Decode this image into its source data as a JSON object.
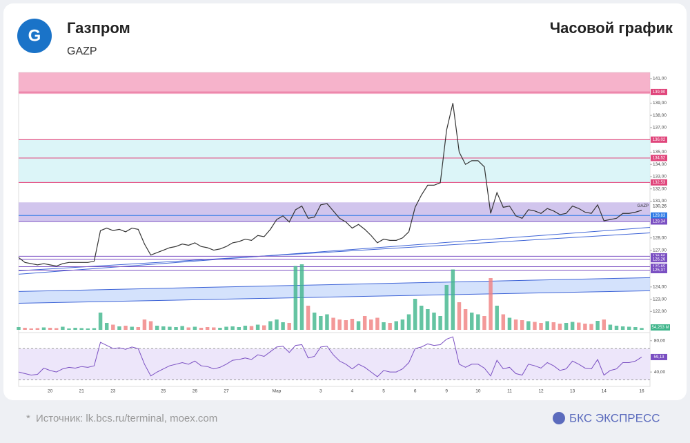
{
  "header": {
    "title": "Газпром",
    "ticker": "GAZP",
    "chart_kind": "Часовой график"
  },
  "footer": {
    "source": "Источник: lk.bcs.ru/terminal, moex.com",
    "brand": "БКС ЭКСПРЕСС"
  },
  "chart_data": {
    "type": "line",
    "ticker_label": "GAZP",
    "categories": [
      null,
      null,
      null,
      null,
      null,
      "20",
      null,
      null,
      null,
      null,
      "21",
      null,
      null,
      null,
      null,
      "23",
      null,
      null,
      null,
      null,
      null,
      null,
      null,
      "25",
      null,
      null,
      null,
      null,
      "26",
      null,
      null,
      null,
      null,
      "27",
      null,
      null,
      null,
      null,
      null,
      null,
      null,
      "Мар",
      null,
      null,
      null,
      null,
      null,
      null,
      "3",
      null,
      null,
      null,
      null,
      "4",
      null,
      null,
      null,
      null,
      "5",
      null,
      null,
      null,
      null,
      "6",
      null,
      null,
      null,
      null,
      "9",
      null,
      null,
      null,
      null,
      "10",
      null,
      null,
      null,
      null,
      "11",
      null,
      null,
      null,
      null,
      "12",
      null,
      null,
      null,
      null,
      "13",
      null,
      null,
      null,
      null,
      "14",
      null,
      null,
      null,
      null,
      null,
      "16"
    ],
    "series": [
      {
        "name": "GAZP",
        "color": "#333333",
        "values": [
          126.4,
          126.0,
          125.9,
          125.8,
          125.9,
          125.8,
          125.7,
          125.9,
          126.0,
          126.0,
          126.0,
          126.0,
          126.1,
          128.6,
          128.8,
          128.6,
          128.7,
          128.5,
          128.8,
          128.7,
          127.5,
          126.6,
          126.8,
          127.0,
          127.2,
          127.3,
          127.5,
          127.4,
          127.6,
          127.3,
          127.2,
          127.0,
          127.1,
          127.3,
          127.6,
          127.7,
          127.9,
          127.8,
          128.2,
          128.1,
          128.7,
          129.5,
          129.8,
          129.3,
          130.3,
          130.6,
          129.6,
          129.7,
          130.7,
          130.8,
          130.2,
          129.6,
          129.3,
          128.8,
          129.1,
          128.7,
          128.2,
          127.6,
          127.9,
          127.8,
          127.8,
          128.0,
          128.5,
          130.5,
          131.5,
          132.3,
          132.3,
          132.5,
          136.8,
          139.0,
          135.0,
          134.0,
          134.3,
          134.3,
          133.8,
          130.0,
          131.7,
          130.5,
          130.6,
          129.8,
          129.6,
          130.3,
          130.2,
          130.0,
          130.4,
          130.2,
          129.9,
          130.0,
          130.6,
          130.4,
          130.1,
          130.0,
          130.7,
          129.4,
          129.5,
          129.6,
          130.0,
          130.0,
          130.1,
          130.26
        ],
        "value_labels": [
          null,
          null,
          null,
          null,
          null,
          null,
          null,
          null,
          null,
          null,
          null,
          null,
          null,
          null,
          null,
          null,
          null,
          null,
          null,
          null,
          null,
          null,
          null,
          null,
          null,
          null,
          null,
          null,
          null,
          null,
          null,
          null,
          null,
          null,
          null,
          null,
          null,
          null,
          null,
          null,
          null,
          null,
          null,
          null,
          null,
          null,
          null,
          null,
          null,
          null,
          null,
          null,
          null,
          null,
          null,
          null,
          null,
          null,
          null,
          null,
          null,
          null,
          null,
          null,
          null,
          null,
          null,
          null,
          null,
          null,
          null,
          null,
          null,
          null,
          null,
          null,
          null,
          null,
          null,
          null,
          null,
          null,
          null,
          null,
          null,
          null,
          null,
          null,
          null,
          null,
          null,
          null,
          null,
          null,
          null,
          null,
          null,
          null,
          null,
          "130,26"
        ]
      }
    ],
    "ylim": [
      120.5,
      141.5
    ],
    "yticks": [
      {
        "value": 122,
        "label": "122,00"
      },
      {
        "value": 123,
        "label": "123,00"
      },
      {
        "value": 124,
        "label": "124,00"
      },
      {
        "value": 127,
        "label": "127,00"
      },
      {
        "value": 128,
        "label": "128,00"
      },
      {
        "value": 131,
        "label": "131,00"
      },
      {
        "value": 132,
        "label": "132,00"
      },
      {
        "value": 133,
        "label": "133,00"
      },
      {
        "value": 134,
        "label": "134,00"
      },
      {
        "value": 135,
        "label": "135,00"
      },
      {
        "value": 137,
        "label": "137,00"
      },
      {
        "value": 138,
        "label": "138,00"
      },
      {
        "value": 139,
        "label": "139,00"
      },
      {
        "value": 141,
        "label": "141,00"
      }
    ],
    "levels": [
      {
        "value": 139.9,
        "label": "139,90",
        "color": "#e0457b"
      },
      {
        "value": 136.02,
        "label": "136,02",
        "color": "#e0457b"
      },
      {
        "value": 134.52,
        "label": "134,52",
        "color": "#e0457b"
      },
      {
        "value": 132.53,
        "label": "132,53",
        "color": "#e0457b"
      },
      {
        "value": 129.83,
        "label": "129,83",
        "color": "#2e7be6"
      },
      {
        "value": 129.34,
        "label": "129,34",
        "color": "#7a4fc2"
      },
      {
        "value": 126.5,
        "label": "126,50",
        "color": "#7a4fc2"
      },
      {
        "value": 126.26,
        "label": "126,26",
        "color": "#7a4fc2"
      },
      {
        "value": 125.65,
        "label": "125,65",
        "color": "#7a4fc2"
      },
      {
        "value": 125.37,
        "label": "125,37",
        "color": "#7a4fc2"
      }
    ],
    "zones": [
      {
        "from": 139.75,
        "to": 141.5,
        "color": "#f4a6c2"
      },
      {
        "from": 129.34,
        "to": 130.9,
        "color": "#c9bbea"
      },
      {
        "from": 132.53,
        "to": 136.02,
        "color": "#d6f3f7"
      }
    ],
    "trendlines": [
      {
        "from": 125.04,
        "to": 128.86,
        "color": "#3d63d6"
      },
      {
        "from": 125.32,
        "to": 128.41,
        "color": "#3d63d6"
      }
    ],
    "channel": {
      "upper": [
        123.63,
        124.76
      ],
      "lower": [
        122.67,
        123.69
      ],
      "color": "#c9dbfb"
    },
    "volume": {
      "ylim": [
        0,
        2000
      ],
      "up_color": "#3fb58b",
      "down_color": "#f08080",
      "values": [
        80,
        60,
        40,
        50,
        70,
        60,
        50,
        90,
        40,
        60,
        50,
        40,
        50,
        500,
        200,
        150,
        100,
        120,
        90,
        80,
        300,
        250,
        120,
        100,
        90,
        80,
        110,
        70,
        90,
        60,
        80,
        70,
        60,
        90,
        100,
        80,
        120,
        110,
        150,
        130,
        250,
        300,
        220,
        200,
        1850,
        1900,
        700,
        500,
        400,
        450,
        350,
        300,
        280,
        320,
        250,
        400,
        300,
        350,
        220,
        200,
        250,
        300,
        450,
        900,
        700,
        600,
        500,
        400,
        1300,
        1750,
        800,
        600,
        500,
        450,
        400,
        1500,
        700,
        450,
        350,
        300,
        280,
        250,
        230,
        200,
        250,
        220,
        180,
        200,
        230,
        210,
        180,
        170,
        260,
        300,
        150,
        120,
        100,
        90,
        80,
        54.253
      ],
      "value_labels": [
        null,
        null,
        null,
        null,
        null,
        null,
        null,
        null,
        null,
        null,
        null,
        null,
        null,
        null,
        null,
        null,
        null,
        null,
        null,
        null,
        null,
        null,
        null,
        null,
        null,
        null,
        null,
        null,
        null,
        null,
        null,
        null,
        null,
        null,
        null,
        null,
        null,
        null,
        null,
        null,
        null,
        null,
        null,
        null,
        null,
        null,
        null,
        null,
        null,
        null,
        null,
        null,
        null,
        null,
        null,
        null,
        null,
        null,
        null,
        null,
        null,
        null,
        null,
        null,
        null,
        null,
        null,
        null,
        null,
        null,
        null,
        null,
        null,
        null,
        null,
        null,
        null,
        null,
        null,
        null,
        null,
        null,
        null,
        null,
        null,
        null,
        null,
        null,
        null,
        null,
        null,
        null,
        null,
        null,
        null,
        null,
        null,
        null,
        null,
        "54,253 M"
      ]
    },
    "rsi": {
      "color": "#7a4fc2",
      "ylim": [
        26,
        86
      ],
      "band": [
        30,
        70
      ],
      "yticks": [
        {
          "value": 80,
          "label": "80,00"
        },
        {
          "value": 40,
          "label": "40,00"
        }
      ],
      "values": [
        40,
        38,
        36,
        37,
        45,
        42,
        40,
        44,
        46,
        45,
        47,
        46,
        48,
        78,
        74,
        70,
        71,
        69,
        72,
        70,
        50,
        35,
        40,
        44,
        48,
        50,
        52,
        50,
        54,
        48,
        47,
        44,
        46,
        50,
        55,
        56,
        58,
        56,
        62,
        60,
        66,
        72,
        73,
        65,
        74,
        75,
        58,
        60,
        72,
        73,
        62,
        54,
        50,
        44,
        50,
        46,
        40,
        34,
        42,
        40,
        40,
        44,
        52,
        70,
        72,
        76,
        74,
        75,
        82,
        85,
        50,
        46,
        50,
        50,
        45,
        35,
        55,
        44,
        46,
        38,
        36,
        50,
        48,
        45,
        52,
        48,
        42,
        44,
        54,
        50,
        45,
        44,
        56,
        36,
        42,
        44,
        52,
        52,
        54,
        59.13
      ],
      "value_labels": [
        null,
        null,
        null,
        null,
        null,
        null,
        null,
        null,
        null,
        null,
        null,
        null,
        null,
        null,
        null,
        null,
        null,
        null,
        null,
        null,
        null,
        null,
        null,
        null,
        null,
        null,
        null,
        null,
        null,
        null,
        null,
        null,
        null,
        null,
        null,
        null,
        null,
        null,
        null,
        null,
        null,
        null,
        null,
        null,
        null,
        null,
        null,
        null,
        null,
        null,
        null,
        null,
        null,
        null,
        null,
        null,
        null,
        null,
        null,
        null,
        null,
        null,
        null,
        null,
        null,
        null,
        null,
        null,
        null,
        null,
        null,
        null,
        null,
        null,
        null,
        null,
        null,
        null,
        null,
        null,
        null,
        null,
        null,
        null,
        null,
        null,
        null,
        null,
        null,
        null,
        null,
        null,
        null,
        null,
        null,
        null,
        null,
        null,
        null,
        "59,13"
      ]
    }
  }
}
